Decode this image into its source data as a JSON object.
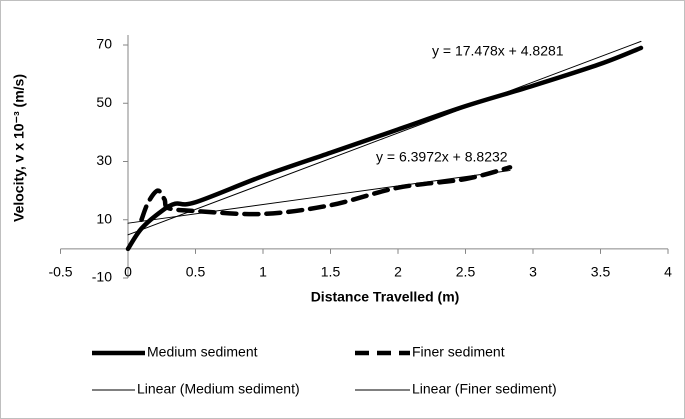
{
  "chart_data": {
    "type": "line",
    "x_label": "Distance Travelled (m)",
    "y_label": "Velocity, v x 10⁻³ (m/s)",
    "xlim": [
      -0.5,
      4
    ],
    "xticks": [
      -0.5,
      0,
      0.5,
      1,
      1.5,
      2,
      2.5,
      3,
      3.5,
      4
    ],
    "ylim": [
      -10,
      70
    ],
    "yticks": [
      -10,
      10,
      30,
      50,
      70
    ],
    "annotations": [
      "y = 17.478x + 4.8281",
      "y = 6.3972x + 8.8232"
    ],
    "series": [
      {
        "name": "Medium sediment",
        "color": "#000000",
        "x": [
          0,
          0.1,
          0.25,
          0.35,
          0.5,
          1,
          1.5,
          2,
          2.5,
          3,
          3.5,
          3.8
        ],
        "values": [
          0,
          7,
          13,
          15.5,
          16,
          25,
          33,
          41,
          49,
          56,
          63.5,
          69
        ]
      },
      {
        "name": "Finer sediment",
        "color": "#000000",
        "x": [
          0.1,
          0.15,
          0.22,
          0.27,
          0.3,
          0.5,
          1,
          1.5,
          2,
          2.5,
          2.83
        ],
        "values": [
          10,
          16,
          20,
          17,
          14,
          13,
          12,
          15,
          21,
          24,
          28
        ]
      },
      {
        "name": "Linear (Medium sediment)",
        "color": "#000000",
        "x": [
          0,
          3.8
        ],
        "values": [
          4.83,
          71.25
        ]
      },
      {
        "name": "Linear (Finer sediment)",
        "color": "#000000",
        "x": [
          0,
          2.83
        ],
        "values": [
          8.82,
          26.93
        ]
      }
    ]
  }
}
